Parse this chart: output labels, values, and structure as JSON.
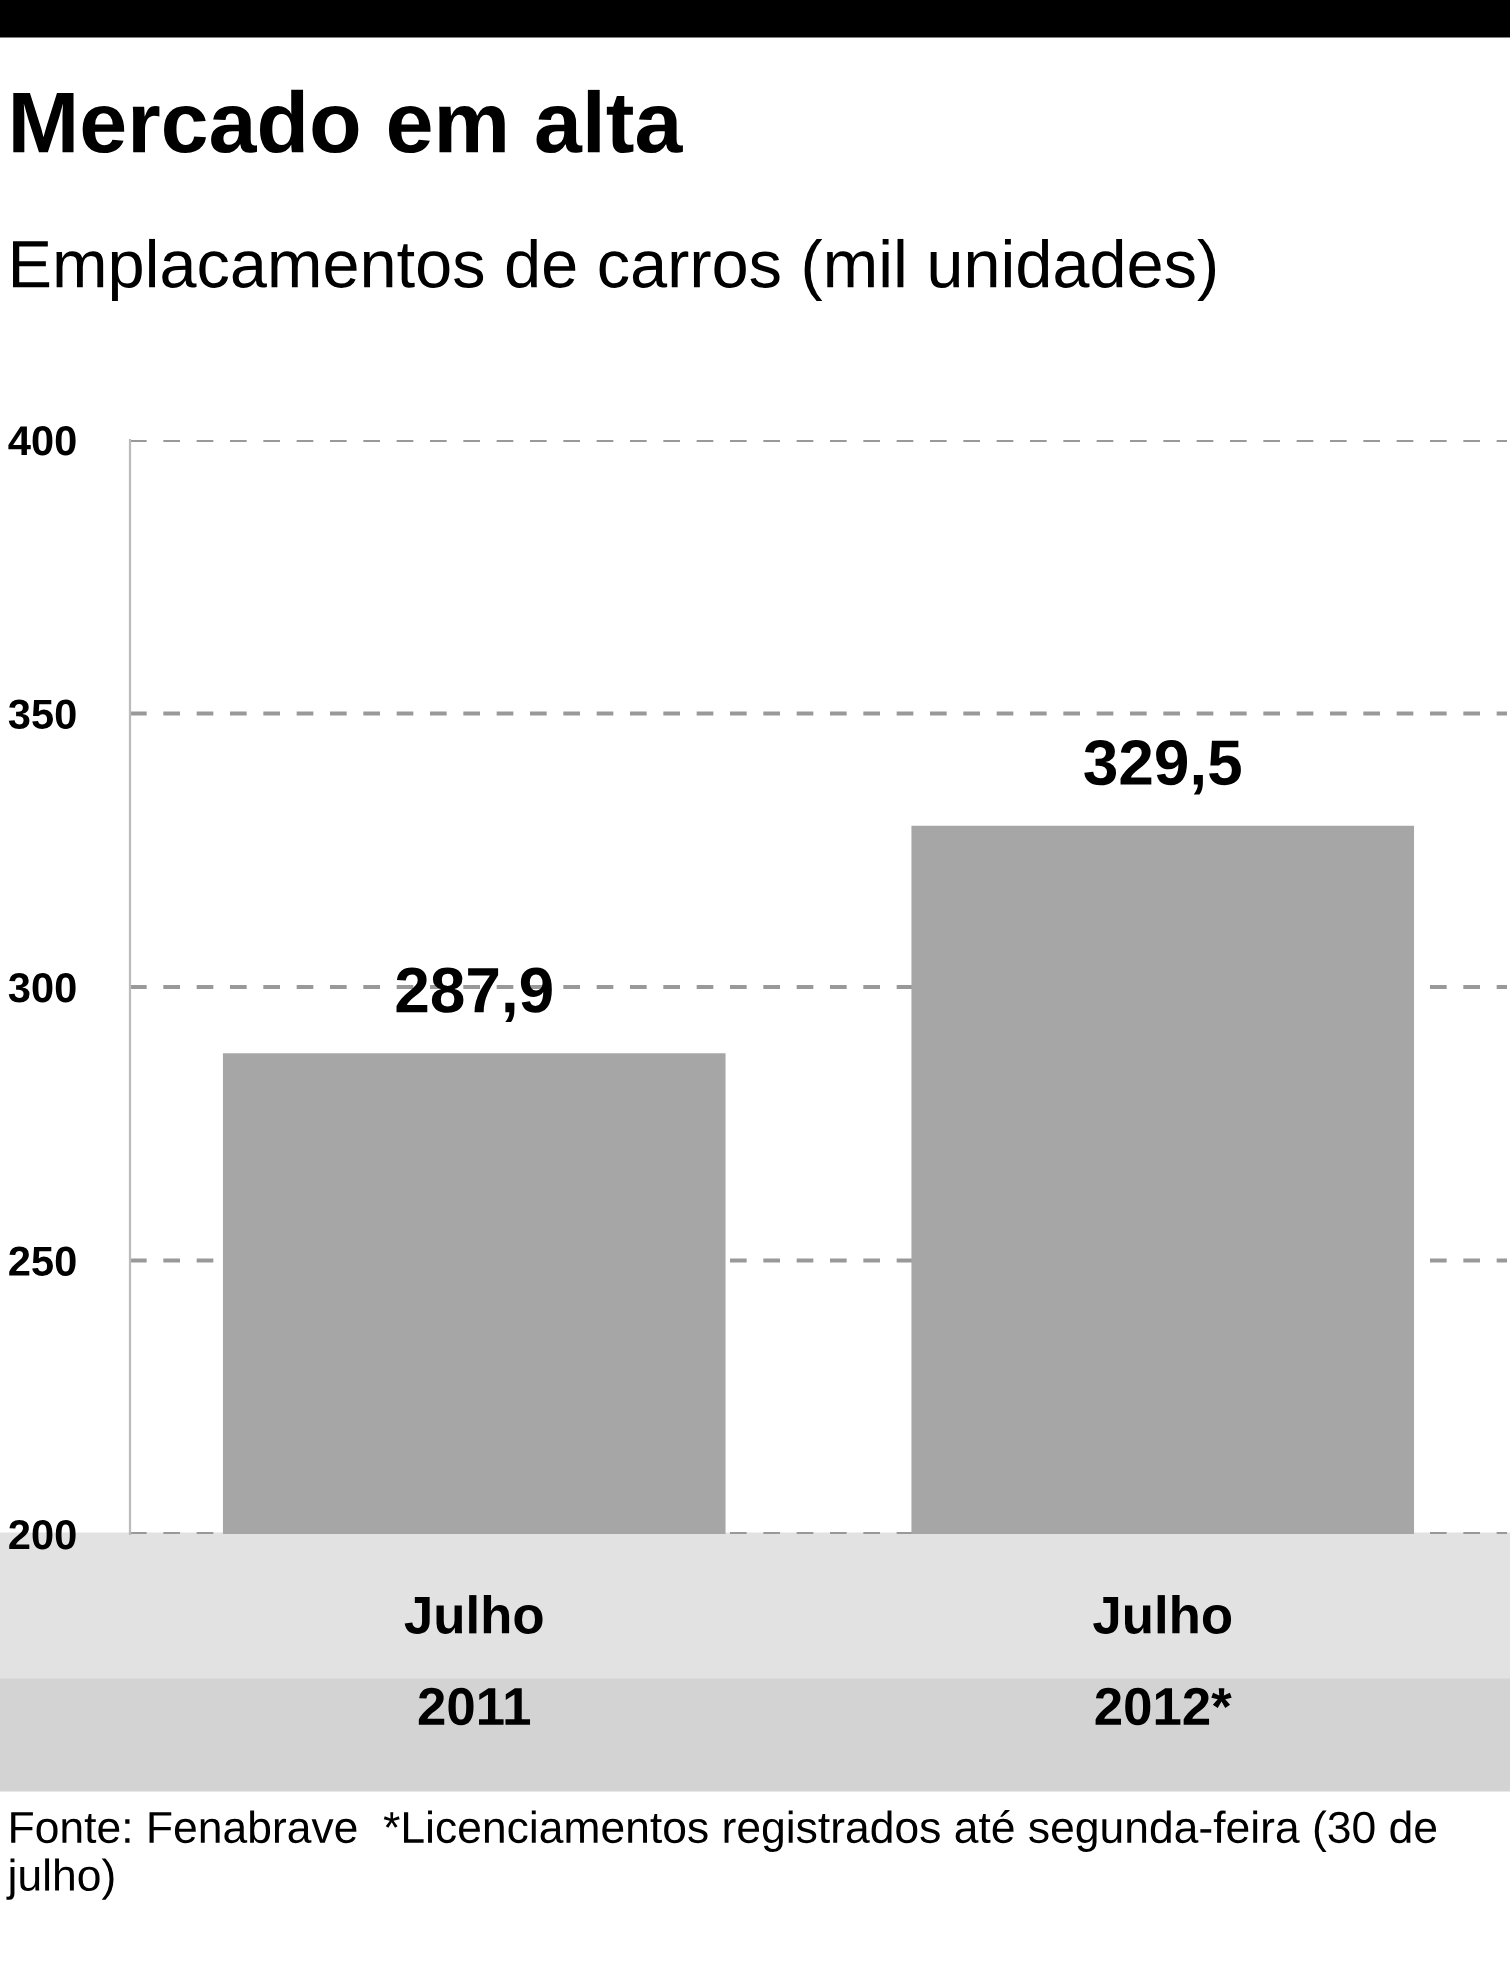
{
  "chart_data": {
    "type": "bar",
    "title": "Mercado em alta",
    "subtitle": "Emplacamentos de carros (mil unidades)",
    "categories": [
      "Julho\n2011",
      "Julho\n2012*"
    ],
    "values": [
      287.9,
      329.5
    ],
    "value_labels": [
      "287,9",
      "329,5"
    ],
    "color": "#a6a6a6",
    "ylim": [
      200,
      400
    ],
    "yticks": [
      200,
      250,
      300,
      350,
      400
    ],
    "grid": "y",
    "annotations": [
      "Fonte: Fenabrave  *Licenciamentos registrados até segunda-feira (30 de julho)"
    ]
  }
}
